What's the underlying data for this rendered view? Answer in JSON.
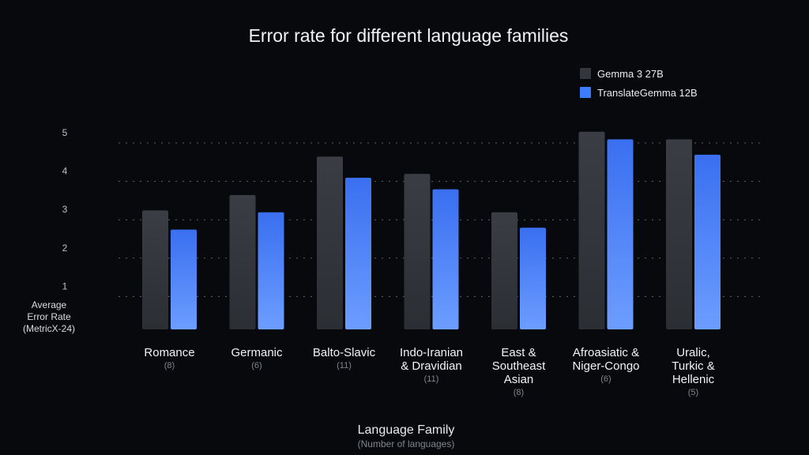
{
  "chart_data": {
    "type": "bar",
    "title": "Error rate for different language families",
    "xlabel": "Language Family",
    "xlabel_sub": "(Number of languages)",
    "ylabel_lines": [
      "Average",
      "Error Rate",
      "(MetricX-24)"
    ],
    "yticks": [
      "1",
      "2",
      "3",
      "4",
      "5"
    ],
    "ylim": [
      0,
      5.2
    ],
    "grid": true,
    "legend_position": "top-right",
    "categories": [
      {
        "label_lines": [
          "Romance"
        ],
        "count": "(8)"
      },
      {
        "label_lines": [
          "Germanic"
        ],
        "count": "(6)"
      },
      {
        "label_lines": [
          "Balto-Slavic"
        ],
        "count": "(11)"
      },
      {
        "label_lines": [
          "Indo-Iranian",
          "& Dravidian"
        ],
        "count": "(11)"
      },
      {
        "label_lines": [
          "East &",
          "Southeast",
          "Asian"
        ],
        "count": "(8)"
      },
      {
        "label_lines": [
          "Afroasiatic &",
          "Niger-Congo"
        ],
        "count": "(6)"
      },
      {
        "label_lines": [
          "Uralic,",
          "Turkic &",
          "Hellenic"
        ],
        "count": "(5)"
      }
    ],
    "series": [
      {
        "name": "Gemma 3 27B",
        "color": "#33363d",
        "values": [
          3.1,
          3.5,
          4.5,
          4.05,
          3.05,
          5.15,
          4.95
        ]
      },
      {
        "name": "TranslateGemma 12B",
        "color": "#3d7cff",
        "values": [
          2.6,
          3.05,
          3.95,
          3.65,
          2.65,
          4.95,
          4.55
        ]
      }
    ]
  }
}
